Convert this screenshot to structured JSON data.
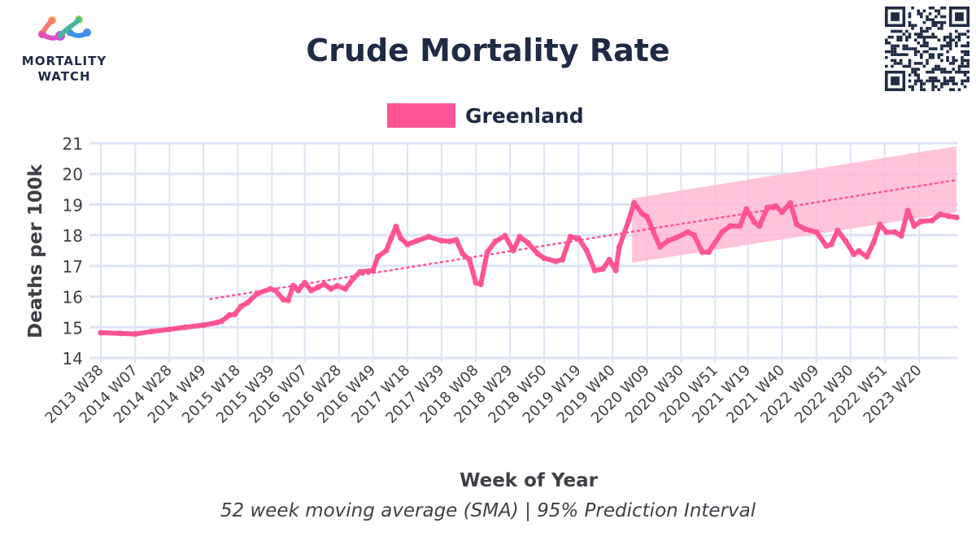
{
  "logo": {
    "line1": "MORTALITY",
    "line2": "WATCH"
  },
  "chart_data": {
    "type": "line",
    "title": "Crude Mortality Rate",
    "subtitle": "52 week moving average (SMA) | 95% Prediction Interval",
    "xlabel": "Week of Year",
    "ylabel": "Deaths per 100k",
    "ylim": [
      14,
      21
    ],
    "yticks": [
      14,
      15,
      16,
      17,
      18,
      19,
      20,
      21
    ],
    "grid": true,
    "legend_position": "top-center",
    "x_start": "2013 W38",
    "x_end": "2023 W43",
    "xticks": [
      "2013 W38",
      "2014 W07",
      "2014 W28",
      "2014 W49",
      "2015 W18",
      "2015 W39",
      "2016 W07",
      "2016 W28",
      "2016 W49",
      "2017 W18",
      "2017 W39",
      "2018 W08",
      "2018 W29",
      "2018 W50",
      "2019 W19",
      "2019 W40",
      "2020 W09",
      "2020 W30",
      "2020 W51",
      "2021 W19",
      "2021 W40",
      "2022 W09",
      "2022 W30",
      "2022 W51",
      "2023 W20"
    ],
    "series": [
      {
        "name": "Greenland",
        "color": "#ff5494",
        "points": [
          [
            "2013 W38",
            14.82
          ],
          [
            "2013 W50",
            14.8
          ],
          [
            "2014 W07",
            14.78
          ],
          [
            "2014 W17",
            14.86
          ],
          [
            "2014 W28",
            14.93
          ],
          [
            "2014 W38",
            15.0
          ],
          [
            "2014 W49",
            15.07
          ],
          [
            "2015 W05",
            15.15
          ],
          [
            "2015 W08",
            15.2
          ],
          [
            "2015 W13",
            15.4
          ],
          [
            "2015 W16",
            15.42
          ],
          [
            "2015 W20",
            15.68
          ],
          [
            "2015 W24",
            15.8
          ],
          [
            "2015 W30",
            16.1
          ],
          [
            "2015 W38",
            16.25
          ],
          [
            "2015 W41",
            16.2
          ],
          [
            "2015 W46",
            15.9
          ],
          [
            "2015 W49",
            15.88
          ],
          [
            "2015 W52",
            16.35
          ],
          [
            "2016 W03",
            16.2
          ],
          [
            "2016 W07",
            16.45
          ],
          [
            "2016 W11",
            16.2
          ],
          [
            "2016 W15",
            16.3
          ],
          [
            "2016 W19",
            16.4
          ],
          [
            "2016 W23",
            16.25
          ],
          [
            "2016 W27",
            16.35
          ],
          [
            "2016 W32",
            16.25
          ],
          [
            "2016 W37",
            16.6
          ],
          [
            "2016 W41",
            16.8
          ],
          [
            "2016 W49",
            16.85
          ],
          [
            "2016 W52",
            17.3
          ],
          [
            "2017 W05",
            17.5
          ],
          [
            "2017 W08",
            17.9
          ],
          [
            "2017 W11",
            18.28
          ],
          [
            "2017 W14",
            17.9
          ],
          [
            "2017 W18",
            17.7
          ],
          [
            "2017 W24",
            17.82
          ],
          [
            "2017 W31",
            17.95
          ],
          [
            "2017 W39",
            17.82
          ],
          [
            "2017 W44",
            17.8
          ],
          [
            "2017 W48",
            17.85
          ],
          [
            "2017 W52",
            17.4
          ],
          [
            "2018 W04",
            17.2
          ],
          [
            "2018 W08",
            16.45
          ],
          [
            "2018 W11",
            16.4
          ],
          [
            "2018 W15",
            17.45
          ],
          [
            "2018 W20",
            17.8
          ],
          [
            "2018 W26",
            17.98
          ],
          [
            "2018 W31",
            17.5
          ],
          [
            "2018 W35",
            17.95
          ],
          [
            "2018 W40",
            17.75
          ],
          [
            "2018 W46",
            17.4
          ],
          [
            "2018 W50",
            17.25
          ],
          [
            "2019 W05",
            17.15
          ],
          [
            "2019 W09",
            17.2
          ],
          [
            "2019 W14",
            17.95
          ],
          [
            "2019 W19",
            17.9
          ],
          [
            "2019 W24",
            17.5
          ],
          [
            "2019 W29",
            16.85
          ],
          [
            "2019 W34",
            16.9
          ],
          [
            "2019 W38",
            17.2
          ],
          [
            "2019 W42",
            16.85
          ],
          [
            "2019 W44",
            17.6
          ],
          [
            "2019 W50",
            18.5
          ],
          [
            "2020 W01",
            19.05
          ],
          [
            "2020 W06",
            18.7
          ],
          [
            "2020 W09",
            18.6
          ],
          [
            "2020 W13",
            18.1
          ],
          [
            "2020 W17",
            17.62
          ],
          [
            "2020 W22",
            17.82
          ],
          [
            "2020 W27",
            17.92
          ],
          [
            "2020 W34",
            18.1
          ],
          [
            "2020 W38",
            18.0
          ],
          [
            "2020 W43",
            17.45
          ],
          [
            "2020 W47",
            17.45
          ],
          [
            "2021 W03",
            18.1
          ],
          [
            "2021 W08",
            18.3
          ],
          [
            "2021 W14",
            18.3
          ],
          [
            "2021 W18",
            18.85
          ],
          [
            "2021 W23",
            18.42
          ],
          [
            "2021 W26",
            18.3
          ],
          [
            "2021 W31",
            18.9
          ],
          [
            "2021 W36",
            18.95
          ],
          [
            "2021 W40",
            18.75
          ],
          [
            "2021 W45",
            19.05
          ],
          [
            "2021 W49",
            18.35
          ],
          [
            "2022 W02",
            18.2
          ],
          [
            "2022 W09",
            18.1
          ],
          [
            "2022 W15",
            17.65
          ],
          [
            "2022 W18",
            17.7
          ],
          [
            "2022 W22",
            18.15
          ],
          [
            "2022 W27",
            17.8
          ],
          [
            "2022 W32",
            17.38
          ],
          [
            "2022 W35",
            17.48
          ],
          [
            "2022 W40",
            17.3
          ],
          [
            "2022 W44",
            17.75
          ],
          [
            "2022 W48",
            18.35
          ],
          [
            "2022 W52",
            18.1
          ],
          [
            "2023 W05",
            18.1
          ],
          [
            "2023 W09",
            17.98
          ],
          [
            "2023 W13",
            18.8
          ],
          [
            "2023 W17",
            18.3
          ],
          [
            "2023 W21",
            18.45
          ],
          [
            "2023 W28",
            18.48
          ],
          [
            "2023 W33",
            18.68
          ],
          [
            "2023 W38",
            18.62
          ],
          [
            "2023 W43",
            18.58
          ]
        ]
      }
    ],
    "trend": {
      "from": [
        "2015 W01",
        15.92
      ],
      "to": [
        "2023 W43",
        19.8
      ],
      "style": "dotted"
    },
    "prediction_interval": {
      "start": "2019 W52",
      "end": "2023 W43",
      "lower_start": 17.1,
      "lower_end": 18.75,
      "upper_start": 19.2,
      "upper_end": 20.9,
      "color": "#ffbad4"
    }
  }
}
